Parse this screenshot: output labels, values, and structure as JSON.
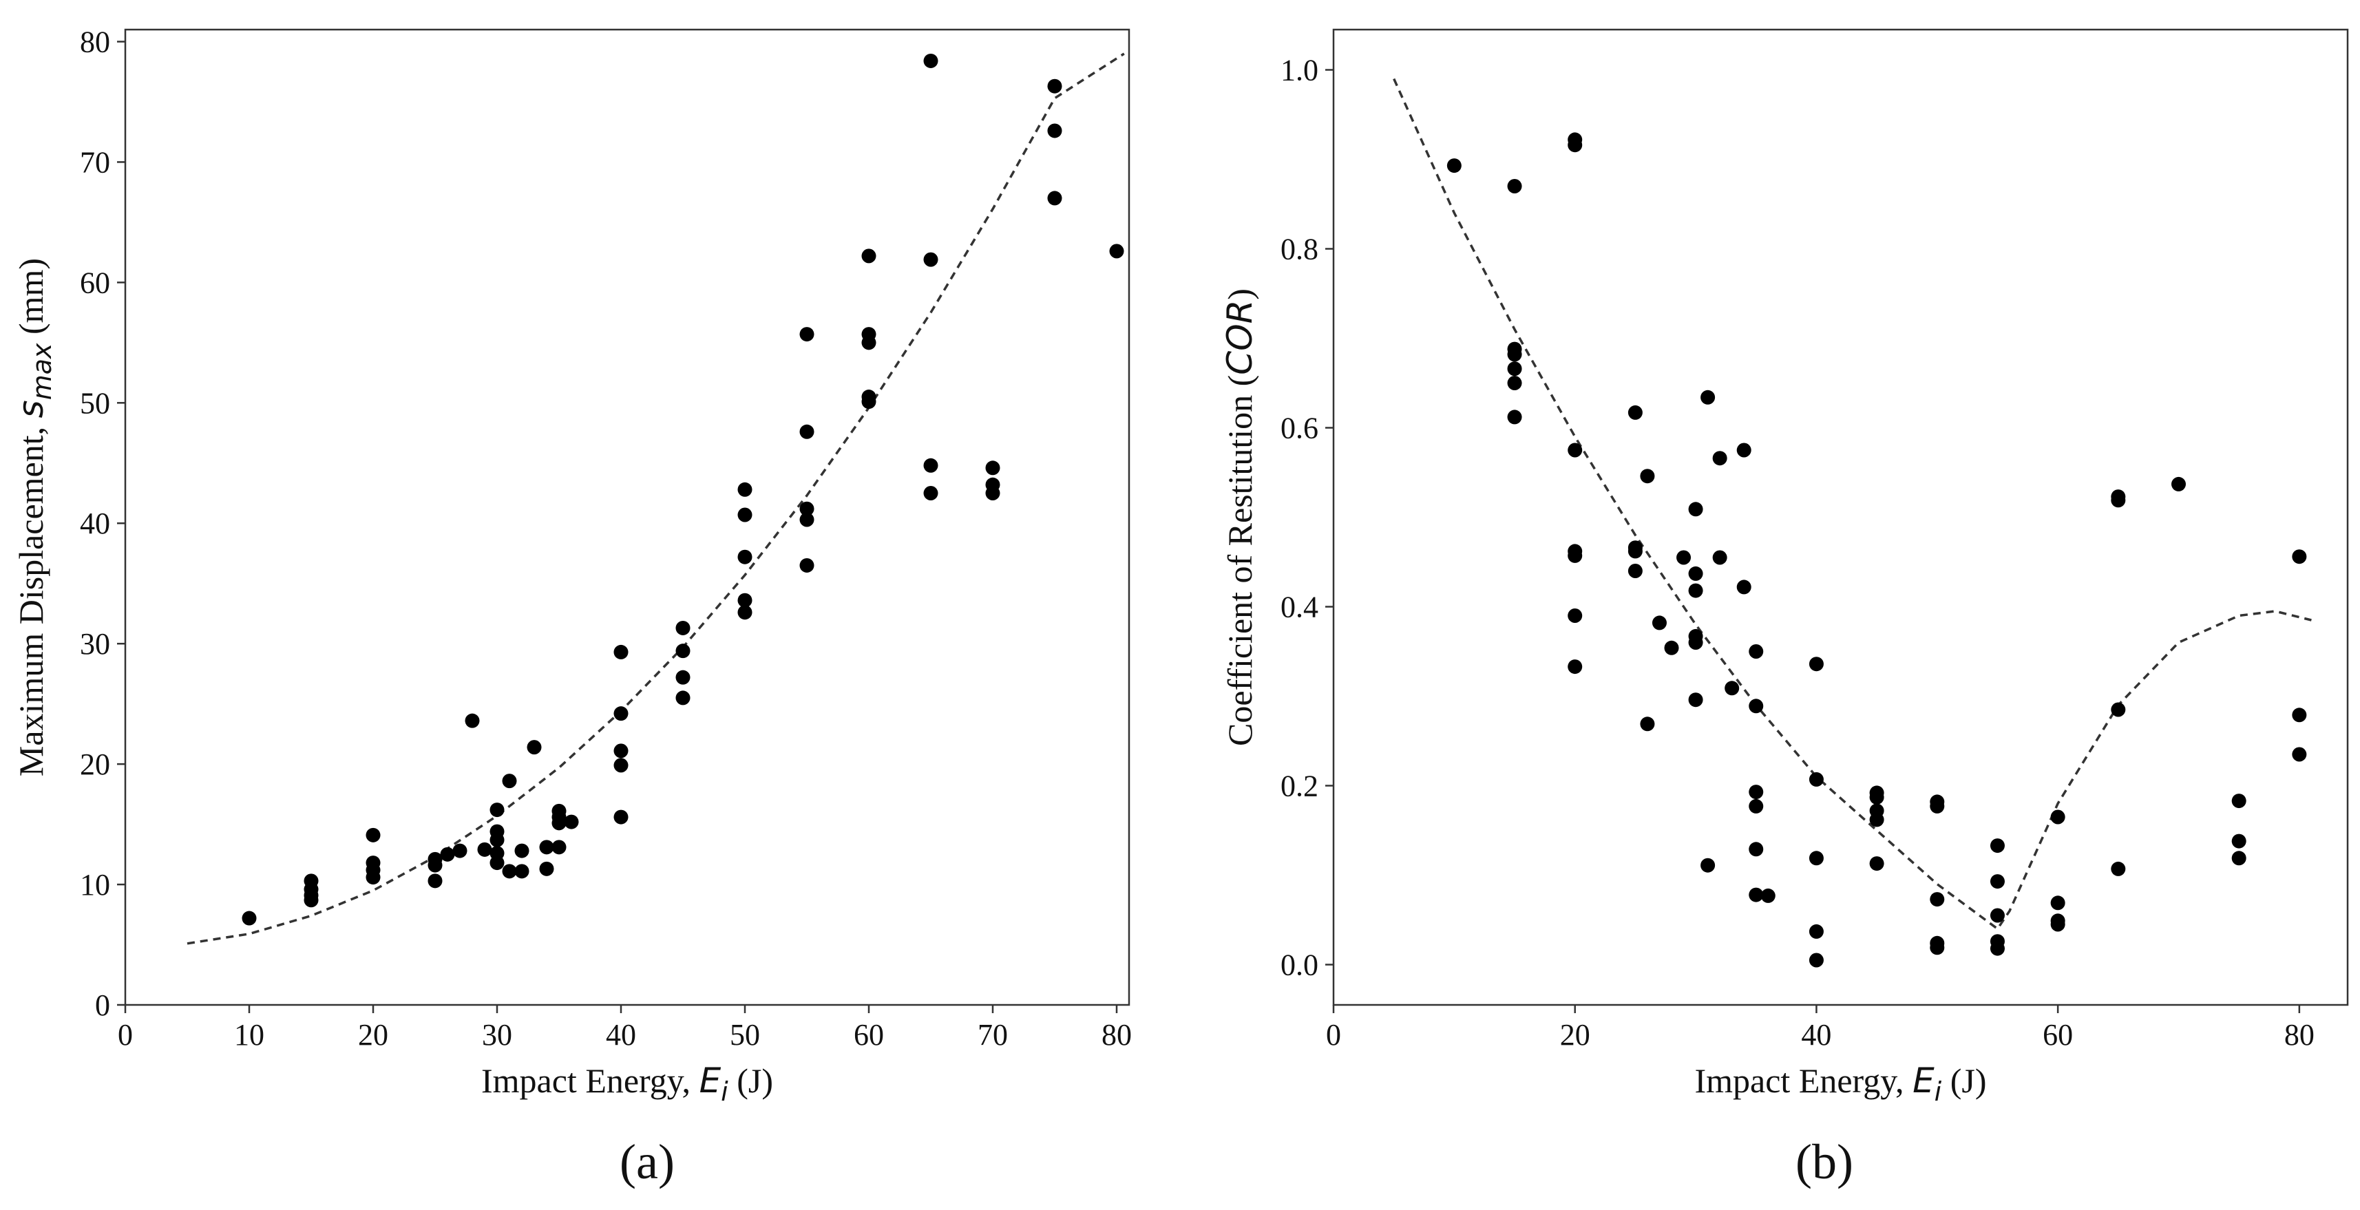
{
  "chart_data": [
    {
      "type": "scatter",
      "panel_label": "(a)",
      "xlabel": {
        "prefix": "Impact Energy, ",
        "var": "E",
        "sub": "i",
        "suffix": " (J)"
      },
      "ylabel": {
        "prefix": "Maximum Displacement, ",
        "var": "s",
        "sub": "max",
        "suffix": " (mm)"
      },
      "xlim": [
        0,
        81
      ],
      "ylim": [
        0,
        81
      ],
      "xticks": [
        0,
        10,
        20,
        30,
        40,
        50,
        60,
        70,
        80
      ],
      "yticks": [
        0,
        10,
        20,
        30,
        40,
        50,
        60,
        70,
        80
      ],
      "xtick_labels": [
        "0",
        "10",
        "20",
        "30",
        "40",
        "50",
        "60",
        "70",
        "80"
      ],
      "ytick_labels": [
        "0",
        "10",
        "20",
        "30",
        "40",
        "50",
        "60",
        "70",
        "80"
      ],
      "grid": false,
      "points": [
        [
          10,
          7.2
        ],
        [
          15,
          10.3
        ],
        [
          15,
          9.6
        ],
        [
          15,
          9.1
        ],
        [
          15,
          8.7
        ],
        [
          20,
          14.1
        ],
        [
          20,
          11.8
        ],
        [
          20,
          11.2
        ],
        [
          20,
          10.6
        ],
        [
          25,
          12.1
        ],
        [
          25,
          11.6
        ],
        [
          25,
          10.3
        ],
        [
          26,
          12.5
        ],
        [
          27,
          12.8
        ],
        [
          28,
          23.6
        ],
        [
          29,
          12.9
        ],
        [
          30,
          16.2
        ],
        [
          30,
          14.4
        ],
        [
          30,
          13.7
        ],
        [
          30,
          12.6
        ],
        [
          30,
          11.8
        ],
        [
          31,
          18.6
        ],
        [
          31,
          11.1
        ],
        [
          32,
          12.8
        ],
        [
          32,
          11.1
        ],
        [
          33,
          21.4
        ],
        [
          34,
          13.1
        ],
        [
          34,
          11.3
        ],
        [
          35,
          16.1
        ],
        [
          35,
          15.6
        ],
        [
          35,
          15.1
        ],
        [
          35,
          13.1
        ],
        [
          36,
          15.2
        ],
        [
          40,
          29.3
        ],
        [
          40,
          24.2
        ],
        [
          40,
          21.1
        ],
        [
          40,
          19.9
        ],
        [
          40,
          15.6
        ],
        [
          45,
          31.3
        ],
        [
          45,
          29.4
        ],
        [
          45,
          27.2
        ],
        [
          45,
          25.5
        ],
        [
          50,
          42.8
        ],
        [
          50,
          40.7
        ],
        [
          50,
          37.2
        ],
        [
          50,
          33.6
        ],
        [
          50,
          32.6
        ],
        [
          55,
          55.7
        ],
        [
          55,
          47.6
        ],
        [
          55,
          41.2
        ],
        [
          55,
          40.3
        ],
        [
          55,
          36.5
        ],
        [
          60,
          62.2
        ],
        [
          60,
          55.7
        ],
        [
          60,
          55.0
        ],
        [
          60,
          50.5
        ],
        [
          60,
          50.1
        ],
        [
          65,
          78.4
        ],
        [
          65,
          61.9
        ],
        [
          65,
          44.8
        ],
        [
          65,
          42.5
        ],
        [
          70,
          44.6
        ],
        [
          70,
          43.2
        ],
        [
          70,
          42.5
        ],
        [
          75,
          76.3
        ],
        [
          75,
          72.6
        ],
        [
          75,
          67.0
        ],
        [
          80,
          62.6
        ]
      ],
      "fit_curve": {
        "x": [
          5,
          10,
          15,
          20,
          25,
          30,
          35,
          40,
          45,
          50,
          55,
          60,
          65,
          70,
          75,
          80.6
        ],
        "y": [
          5.1,
          5.9,
          7.4,
          9.5,
          12.3,
          15.7,
          19.7,
          24.4,
          29.7,
          35.7,
          42.3,
          49.6,
          57.5,
          66.1,
          75.3,
          79.0
        ]
      }
    },
    {
      "type": "scatter",
      "panel_label": "(b)",
      "xlabel": {
        "prefix": "Impact Energy, ",
        "var": "E",
        "sub": "i",
        "suffix": " (J)"
      },
      "ylabel": {
        "prefix": "Coefficient of Restitution (",
        "var": "COR",
        "sub": "",
        "suffix": ")"
      },
      "xlim": [
        0,
        84
      ],
      "ylim": [
        -0.045,
        1.045
      ],
      "xticks": [
        0,
        20,
        40,
        60,
        80
      ],
      "yticks": [
        0.0,
        0.2,
        0.4,
        0.6,
        0.8,
        1.0
      ],
      "xtick_labels": [
        "0",
        "20",
        "40",
        "60",
        "80"
      ],
      "ytick_labels": [
        "0.0",
        "0.2",
        "0.4",
        "0.6",
        "0.8",
        "1.0"
      ],
      "grid": false,
      "points": [
        [
          10,
          0.893
        ],
        [
          15,
          0.87
        ],
        [
          15,
          0.688
        ],
        [
          15,
          0.682
        ],
        [
          15,
          0.666
        ],
        [
          15,
          0.65
        ],
        [
          15,
          0.612
        ],
        [
          20,
          0.922
        ],
        [
          20,
          0.916
        ],
        [
          20,
          0.575
        ],
        [
          20,
          0.462
        ],
        [
          20,
          0.457
        ],
        [
          20,
          0.39
        ],
        [
          20,
          0.333
        ],
        [
          25,
          0.617
        ],
        [
          25,
          0.466
        ],
        [
          25,
          0.462
        ],
        [
          25,
          0.44
        ],
        [
          26,
          0.546
        ],
        [
          26,
          0.269
        ],
        [
          27,
          0.382
        ],
        [
          28,
          0.354
        ],
        [
          29,
          0.455
        ],
        [
          30,
          0.509
        ],
        [
          30,
          0.437
        ],
        [
          30,
          0.418
        ],
        [
          30,
          0.367
        ],
        [
          30,
          0.36
        ],
        [
          30,
          0.296
        ],
        [
          31,
          0.634
        ],
        [
          31,
          0.111
        ],
        [
          32,
          0.566
        ],
        [
          32,
          0.455
        ],
        [
          33,
          0.309
        ],
        [
          34,
          0.575
        ],
        [
          34,
          0.422
        ],
        [
          35,
          0.35
        ],
        [
          35,
          0.289
        ],
        [
          35,
          0.193
        ],
        [
          35,
          0.177
        ],
        [
          35,
          0.129
        ],
        [
          35,
          0.078
        ],
        [
          36,
          0.077
        ],
        [
          40,
          0.336
        ],
        [
          40,
          0.207
        ],
        [
          40,
          0.119
        ],
        [
          40,
          0.037
        ],
        [
          40,
          0.005
        ],
        [
          45,
          0.192
        ],
        [
          45,
          0.187
        ],
        [
          45,
          0.172
        ],
        [
          45,
          0.162
        ],
        [
          45,
          0.113
        ],
        [
          50,
          0.182
        ],
        [
          50,
          0.177
        ],
        [
          50,
          0.073
        ],
        [
          50,
          0.024
        ],
        [
          50,
          0.019
        ],
        [
          55,
          0.133
        ],
        [
          55,
          0.093
        ],
        [
          55,
          0.055
        ],
        [
          55,
          0.026
        ],
        [
          55,
          0.018
        ],
        [
          60,
          0.165
        ],
        [
          60,
          0.069
        ],
        [
          60,
          0.049
        ],
        [
          60,
          0.045
        ],
        [
          65,
          0.523
        ],
        [
          65,
          0.519
        ],
        [
          65,
          0.285
        ],
        [
          65,
          0.107
        ],
        [
          70,
          0.537
        ],
        [
          75,
          0.183
        ],
        [
          75,
          0.138
        ],
        [
          75,
          0.119
        ],
        [
          80,
          0.456
        ],
        [
          80,
          0.279
        ],
        [
          80,
          0.235
        ]
      ],
      "fit_curve": {
        "x": [
          5,
          10,
          15,
          20,
          25,
          30,
          35,
          40,
          45,
          50,
          55,
          56,
          60,
          65,
          70,
          75,
          78,
          81
        ],
        "y": [
          0.99,
          0.84,
          0.71,
          0.59,
          0.48,
          0.38,
          0.29,
          0.21,
          0.15,
          0.09,
          0.04,
          0.06,
          0.18,
          0.29,
          0.36,
          0.39,
          0.395,
          0.385
        ]
      }
    }
  ]
}
